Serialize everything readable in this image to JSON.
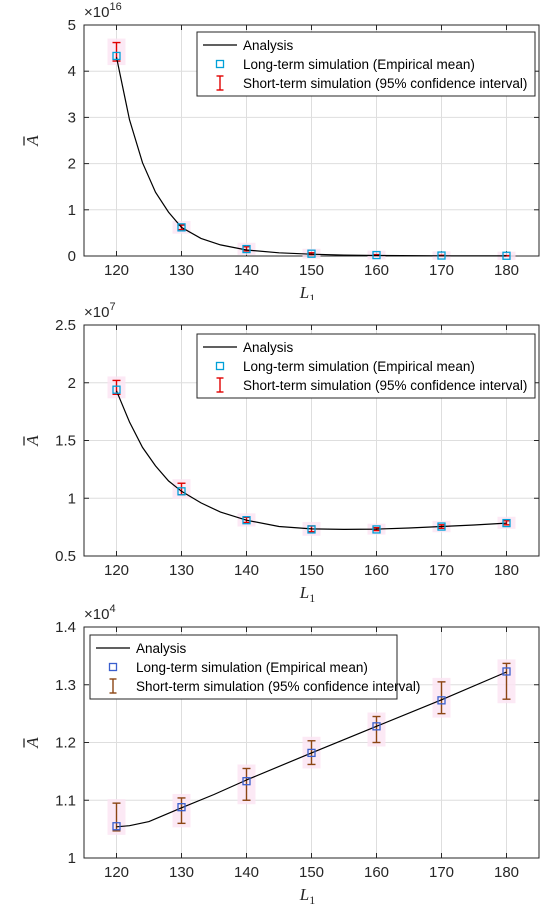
{
  "chart_data": [
    {
      "type": "line",
      "panel": 1,
      "xlabel": "L",
      "xlabel_sub": "1",
      "ylabel": "A",
      "exponent_base": "×10",
      "exponent_power": "16",
      "x_ticks": [
        "120",
        "130",
        "140",
        "150",
        "160",
        "170",
        "180"
      ],
      "y_ticks": [
        "0",
        "1",
        "2",
        "3",
        "4",
        "5"
      ],
      "xlim": [
        115,
        185
      ],
      "ylim": [
        0,
        5
      ],
      "grid": true,
      "legend_position": "top-right",
      "legend": [
        "Analysis",
        "Long-term simulation (Empirical mean)",
        "Short-term simulation (95% confidence interval)"
      ],
      "colors": {
        "line": "#000000",
        "marker": "#00a0d8",
        "errorbar": "#e00000"
      },
      "series": [
        {
          "name": "Analysis",
          "kind": "curve",
          "x": [
            120,
            122,
            124,
            126,
            128,
            130,
            133,
            136,
            140,
            145,
            150,
            155,
            160,
            170,
            180
          ],
          "y": [
            4.3,
            2.95,
            2.02,
            1.38,
            0.95,
            0.62,
            0.38,
            0.24,
            0.13,
            0.07,
            0.04,
            0.02,
            0.01,
            0.005,
            0.002
          ]
        },
        {
          "name": "Long-term simulation (Empirical mean)",
          "kind": "markers",
          "x": [
            120,
            130,
            140,
            150,
            160,
            170,
            180
          ],
          "y": [
            4.33,
            0.62,
            0.15,
            0.05,
            0.02,
            0.01,
            0.005
          ]
        },
        {
          "name": "Short-term simulation (95% confidence interval)",
          "kind": "errorbar",
          "x": [
            120,
            130,
            140,
            150,
            160,
            170,
            180
          ],
          "low": [
            4.22,
            0.57,
            0.11,
            0.03,
            0.01,
            0.005,
            0.002
          ],
          "high": [
            4.62,
            0.67,
            0.2,
            0.07,
            0.03,
            0.015,
            0.008
          ]
        }
      ]
    },
    {
      "type": "line",
      "panel": 2,
      "xlabel": "L",
      "xlabel_sub": "1",
      "ylabel": "A",
      "exponent_base": "×10",
      "exponent_power": "7",
      "x_ticks": [
        "120",
        "130",
        "140",
        "150",
        "160",
        "170",
        "180"
      ],
      "y_ticks": [
        "0.5",
        "1",
        "1.5",
        "2",
        "2.5"
      ],
      "xlim": [
        115,
        185
      ],
      "ylim": [
        0.5,
        2.5
      ],
      "grid": true,
      "legend_position": "top-right",
      "legend": [
        "Analysis",
        "Long-term simulation (Empirical mean)",
        "Short-term simulation (95% confidence interval)"
      ],
      "colors": {
        "line": "#000000",
        "marker": "#00a0d8",
        "errorbar": "#e00000"
      },
      "series": [
        {
          "name": "Analysis",
          "kind": "curve",
          "x": [
            120,
            122,
            124,
            126,
            128,
            130,
            133,
            136,
            140,
            145,
            150,
            155,
            160,
            165,
            170,
            175,
            180
          ],
          "y": [
            1.93,
            1.66,
            1.44,
            1.28,
            1.15,
            1.06,
            0.96,
            0.88,
            0.81,
            0.755,
            0.735,
            0.73,
            0.733,
            0.742,
            0.755,
            0.768,
            0.785
          ]
        },
        {
          "name": "Long-term simulation (Empirical mean)",
          "kind": "markers",
          "x": [
            120,
            130,
            140,
            150,
            160,
            170,
            180
          ],
          "y": [
            1.94,
            1.06,
            0.81,
            0.73,
            0.73,
            0.755,
            0.785
          ]
        },
        {
          "name": "Short-term simulation (95% confidence interval)",
          "kind": "errorbar",
          "x": [
            120,
            130,
            140,
            150,
            160,
            170,
            180
          ],
          "low": [
            1.9,
            1.03,
            0.79,
            0.71,
            0.72,
            0.74,
            0.77
          ],
          "high": [
            2.02,
            1.13,
            0.835,
            0.76,
            0.745,
            0.77,
            0.805
          ]
        }
      ]
    },
    {
      "type": "line",
      "panel": 3,
      "xlabel": "L",
      "xlabel_sub": "1",
      "ylabel": "A",
      "exponent_base": "×10",
      "exponent_power": "4",
      "x_ticks": [
        "120",
        "130",
        "140",
        "150",
        "160",
        "170",
        "180"
      ],
      "y_ticks": [
        "1",
        "1.1",
        "1.2",
        "1.3",
        "1.4"
      ],
      "xlim": [
        115,
        185
      ],
      "ylim": [
        1.0,
        1.4
      ],
      "grid": true,
      "legend_position": "top-left",
      "legend": [
        "Analysis",
        "Long-term simulation (Empirical mean)",
        "Short-term simulation (95% confidence interval)"
      ],
      "colors": {
        "line": "#000000",
        "marker": "#3a5fcd",
        "errorbar": "#8b4513"
      },
      "series": [
        {
          "name": "Analysis",
          "kind": "curve",
          "x": [
            120,
            122,
            125,
            130,
            135,
            140,
            150,
            160,
            170,
            180
          ],
          "y": [
            1.054,
            1.056,
            1.063,
            1.087,
            1.11,
            1.135,
            1.182,
            1.228,
            1.274,
            1.322
          ]
        },
        {
          "name": "Long-term simulation (Empirical mean)",
          "kind": "markers",
          "x": [
            120,
            130,
            140,
            150,
            160,
            170,
            180
          ],
          "y": [
            1.055,
            1.088,
            1.133,
            1.182,
            1.228,
            1.273,
            1.323
          ]
        },
        {
          "name": "Short-term simulation (95% confidence interval)",
          "kind": "errorbar",
          "x": [
            120,
            130,
            140,
            150,
            160,
            170,
            180
          ],
          "low": [
            1.047,
            1.06,
            1.1,
            1.162,
            1.2,
            1.25,
            1.275
          ],
          "high": [
            1.095,
            1.104,
            1.155,
            1.203,
            1.245,
            1.305,
            1.337
          ]
        }
      ]
    }
  ]
}
